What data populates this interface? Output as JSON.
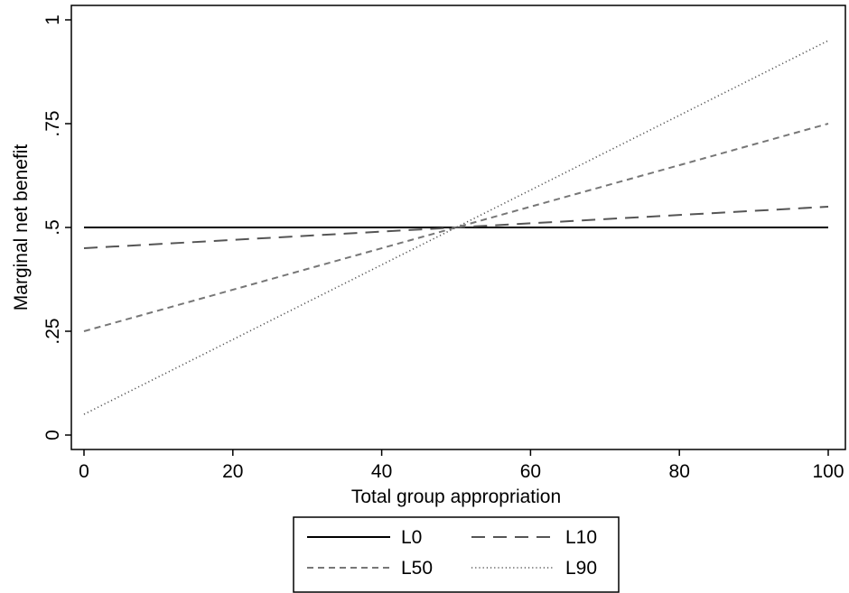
{
  "chart_data": {
    "type": "line",
    "title": "",
    "xlabel": "Total group appropriation",
    "ylabel": "Marginal net benefit",
    "xlim": [
      0,
      100
    ],
    "ylim": [
      0,
      1
    ],
    "x_ticks": [
      0,
      20,
      40,
      60,
      80,
      100
    ],
    "x_tick_labels": [
      "0",
      "20",
      "40",
      "60",
      "80",
      "100"
    ],
    "y_ticks": [
      0,
      0.25,
      0.5,
      0.75,
      1
    ],
    "y_tick_labels": [
      "0",
      ".25",
      ".5",
      ".75",
      "1"
    ],
    "grid": false,
    "legend_position": "bottom",
    "series": [
      {
        "name": "L0",
        "x": [
          0,
          100
        ],
        "y": [
          0.5,
          0.5
        ],
        "color": "#000000",
        "dash": "solid"
      },
      {
        "name": "L10",
        "x": [
          0,
          100
        ],
        "y": [
          0.45,
          0.55
        ],
        "color": "#555555",
        "dash": "longdash"
      },
      {
        "name": "L50",
        "x": [
          0,
          100
        ],
        "y": [
          0.25,
          0.75
        ],
        "color": "#777777",
        "dash": "shortdash"
      },
      {
        "name": "L90",
        "x": [
          0,
          100
        ],
        "y": [
          0.05,
          0.95
        ],
        "color": "#555555",
        "dash": "dot"
      }
    ]
  }
}
